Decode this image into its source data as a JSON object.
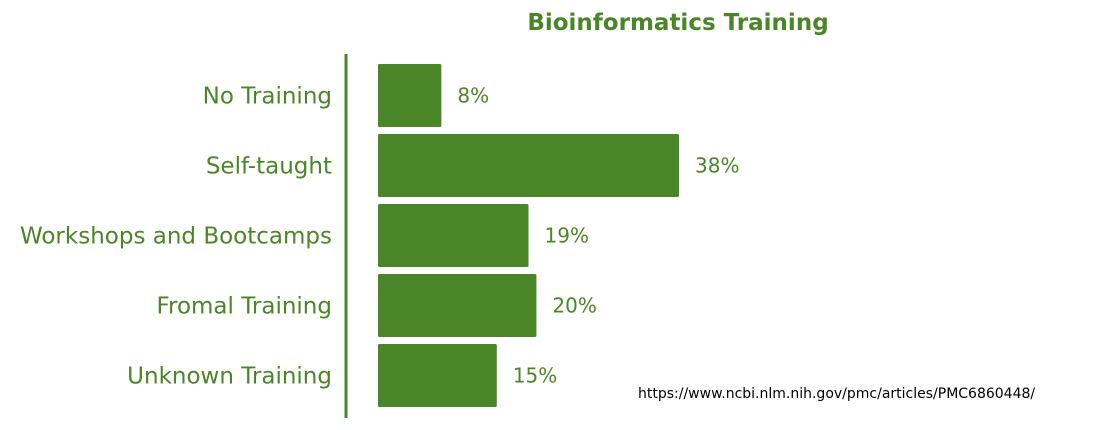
{
  "colors": {
    "accent": "#4a8627",
    "text": "#4a8627",
    "source_text": "#000000"
  },
  "source_url": "https://www.ncbi.nlm.nih.gov/pmc/articles/PMC6860448/",
  "chart_data": {
    "type": "bar",
    "orientation": "horizontal",
    "title": "Bioinformatics Training",
    "xlabel": "",
    "ylabel": "",
    "categories": [
      "No Training",
      "Self-taught",
      "Workshops and Bootcamps",
      "Fromal Training",
      "Unknown Training"
    ],
    "values": [
      8,
      38,
      19,
      20,
      15
    ],
    "value_labels": [
      "8%",
      "38%",
      "19%",
      "20%",
      "15%"
    ],
    "value_unit": "%",
    "xlim": [
      0,
      38
    ],
    "grid": false,
    "legend": "none"
  }
}
